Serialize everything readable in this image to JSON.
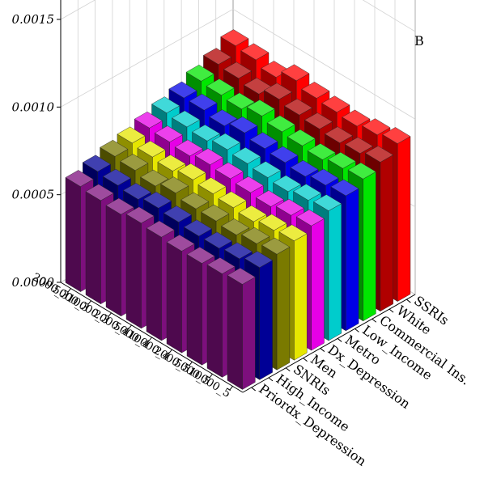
{
  "panel_label": "B",
  "chart_data": {
    "type": "bar3d",
    "title": "",
    "xlabel": "",
    "ylabel": "",
    "zlabel": "",
    "zlim": [
      0,
      0.0018
    ],
    "zticks": [
      "0.0000",
      "0.0005",
      "0.0010",
      "0.0015"
    ],
    "grid": true,
    "x_categories": [
      "10000_5",
      "5000_5",
      "2000_5",
      "10000_4",
      "5000_4",
      "2000_4",
      "10000_3",
      "5000_3",
      "2000_3"
    ],
    "y_categories": [
      "Priordx_Depression",
      "High_Income",
      "SNRIs",
      "Men",
      "Dx_Depression",
      "Metro",
      "Low_Income",
      "Commercial Ins.",
      "White",
      "SSRIs"
    ],
    "colors": [
      "#7d0f7d",
      "#000096",
      "#7a7a00",
      "#e6e600",
      "#e600e6",
      "#00cccc",
      "#0000e6",
      "#00e600",
      "#b00000",
      "#ff0000"
    ],
    "values": [
      [
        0.0006,
        0.00064,
        0.00066,
        0.00068,
        0.00071,
        0.00074,
        0.00077,
        0.00081,
        0.00085,
        0.0009
      ],
      [
        0.00059,
        0.00062,
        0.00065,
        0.00067,
        0.0007,
        0.00073,
        0.00076,
        0.0008,
        0.00083,
        0.00088
      ],
      [
        0.00058,
        0.00061,
        0.00063,
        0.00065,
        0.00068,
        0.00071,
        0.00074,
        0.00078,
        0.00082,
        0.00086
      ],
      [
        0.00058,
        0.00061,
        0.00064,
        0.00066,
        0.00069,
        0.00072,
        0.00075,
        0.00079,
        0.00083,
        0.00087
      ],
      [
        0.00059,
        0.00062,
        0.00064,
        0.00067,
        0.0007,
        0.00073,
        0.00076,
        0.0008,
        0.00084,
        0.00088
      ],
      [
        0.0006,
        0.00063,
        0.00066,
        0.00068,
        0.00071,
        0.00074,
        0.00078,
        0.00082,
        0.00086,
        0.00091
      ],
      [
        0.00058,
        0.00061,
        0.00063,
        0.00066,
        0.00069,
        0.00072,
        0.00075,
        0.00079,
        0.00082,
        0.00086
      ],
      [
        0.00059,
        0.00062,
        0.00065,
        0.00067,
        0.0007,
        0.00073,
        0.00077,
        0.0008,
        0.00084,
        0.00089
      ],
      [
        0.0006,
        0.00063,
        0.00066,
        0.00068,
        0.00071,
        0.00074,
        0.00077,
        0.00081,
        0.00085,
        0.0009
      ]
    ]
  }
}
